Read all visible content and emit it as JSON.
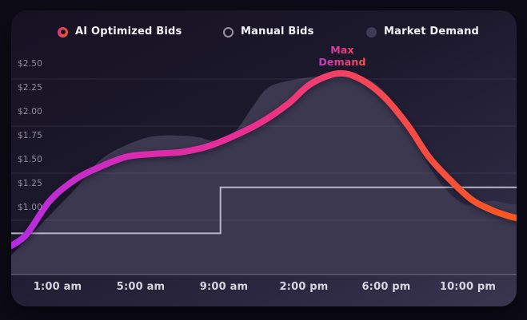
{
  "page": {
    "background": "#0d0b16"
  },
  "legend": {
    "items": [
      {
        "label": "AI Optimized Bids",
        "icon": "gradient-ring-icon",
        "icon_colors": [
          "#e0318d",
          "#f4591e"
        ]
      },
      {
        "label": "Manual Bids",
        "icon": "gray-ring-icon",
        "icon_color": "#95929f"
      },
      {
        "label": "Market Demand",
        "icon": "filled-dot-icon",
        "icon_color": "#3e3b54"
      }
    ]
  },
  "annotation": {
    "text_line1": "Max",
    "text_line2": "Demand",
    "colors": [
      "#9747e8",
      "#e8398c",
      "#f56a1e"
    ]
  },
  "chart_data": {
    "type": "line",
    "title": "",
    "xlabel": "",
    "ylabel": "",
    "currency_unit": "$ per bid",
    "x_ticks": [
      "1:00 am",
      "5:00 am",
      "9:00 am",
      "2:00 pm",
      "6:00 pm",
      "10:00 pm"
    ],
    "y_ticks": [
      "$2.50",
      "$2.25",
      "$2.00",
      "$1.75",
      "$1.50",
      "$1.25",
      "$1.00"
    ],
    "y_range": [
      0.5,
      2.5
    ],
    "grid": "horizontal-faint",
    "legend_position": "top",
    "series": [
      {
        "name": "AI Optimized Bids",
        "style": "gradient-line",
        "line_width": 8,
        "gradient": [
          {
            "offset": 0,
            "color": "#b32ce4"
          },
          {
            "offset": 0.25,
            "color": "#d92bb0"
          },
          {
            "offset": 0.48,
            "color": "#ec2f8e"
          },
          {
            "offset": 0.68,
            "color": "#f4445c"
          },
          {
            "offset": 1,
            "color": "#f8581d"
          }
        ],
        "points": [
          [
            "12:00 am",
            0.6
          ],
          [
            "12:20 am",
            0.72
          ],
          [
            "12:50 am",
            1.07
          ],
          [
            "1:50 am",
            1.29
          ],
          [
            "3:00 am",
            1.42
          ],
          [
            "4:20 am",
            1.53
          ],
          [
            "5:40 am",
            1.56
          ],
          [
            "7:00 am",
            1.58
          ],
          [
            "8:15 am",
            1.64
          ],
          [
            "9:40 am",
            1.75
          ],
          [
            "11:20 am",
            1.89
          ],
          [
            "1:00 pm",
            2.08
          ],
          [
            "2:20 pm",
            2.29
          ],
          [
            "3:40 pm",
            2.4
          ],
          [
            "4:45 pm",
            2.34
          ],
          [
            "5:55 pm",
            2.15
          ],
          [
            "7:05 pm",
            1.85
          ],
          [
            "8:05 pm",
            1.53
          ],
          [
            "9:10 pm",
            1.28
          ],
          [
            "10:10 pm",
            1.08
          ],
          [
            "11:00 pm",
            0.97
          ],
          [
            "11:40 pm",
            0.91
          ],
          [
            "11:59 pm",
            0.89
          ]
        ]
      },
      {
        "name": "Manual Bids",
        "style": "step-line",
        "color": "#b9b7c6",
        "line_width": 2,
        "segments": [
          {
            "from": "12:00 am",
            "to": "8:50 am",
            "value": 0.73
          },
          {
            "from": "8:50 am",
            "to": "11:59 pm",
            "value": 1.21
          }
        ]
      },
      {
        "name": "Market Demand",
        "style": "area",
        "color": "#3b3850",
        "points": [
          [
            "12:00 am",
            0.5
          ],
          [
            "12:50 am",
            0.92
          ],
          [
            "1:50 am",
            1.19
          ],
          [
            "2:30 am",
            1.36
          ],
          [
            "3:05 am",
            1.5
          ],
          [
            "4:05 am",
            1.63
          ],
          [
            "5:30 am",
            1.74
          ],
          [
            "7:00 am",
            1.75
          ],
          [
            "7:50 am",
            1.73
          ],
          [
            "8:35 am",
            1.7
          ],
          [
            "9:40 am",
            1.79
          ],
          [
            "10:45 am",
            2.04
          ],
          [
            "11:45 am",
            2.25
          ],
          [
            "1:15 pm",
            2.33
          ],
          [
            "2:45 pm",
            2.37
          ],
          [
            "4:20 pm",
            2.38
          ],
          [
            "5:30 pm",
            2.29
          ],
          [
            "6:35 pm",
            2.03
          ],
          [
            "7:20 pm",
            1.75
          ],
          [
            "8:05 pm",
            1.44
          ],
          [
            "8:55 pm",
            1.19
          ],
          [
            "9:55 pm",
            1.03
          ],
          [
            "10:55 pm",
            1.07
          ],
          [
            "11:40 pm",
            1.04
          ],
          [
            "11:59 pm",
            1.03
          ]
        ]
      }
    ],
    "annotations": [
      {
        "label": "Max Demand",
        "x": "3:45 pm",
        "y": 2.4
      }
    ]
  }
}
